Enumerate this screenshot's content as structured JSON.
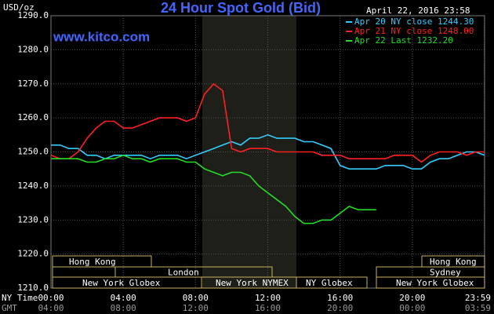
{
  "chart_data": {
    "type": "line",
    "title": "24 Hour Spot Gold (Bid)",
    "subtitle": "April 22, 2016 23:58",
    "y_label": "USD/oz",
    "watermark": "www.kitco.com",
    "x_label": "NY Time",
    "x2_label": "GMT",
    "x": [
      0,
      0.5,
      1,
      1.5,
      2,
      2.5,
      3,
      3.5,
      4,
      4.5,
      5,
      5.5,
      6,
      6.5,
      7,
      7.5,
      8,
      8.5,
      9,
      9.5,
      10,
      10.5,
      11,
      11.5,
      12,
      12.5,
      13,
      13.5,
      14,
      14.5,
      15,
      15.5,
      16,
      16.5,
      17,
      17.5,
      18,
      18.5,
      19,
      19.5,
      20,
      20.5,
      21,
      21.5,
      22,
      22.5,
      23,
      23.5,
      24
    ],
    "series": [
      {
        "name": "Apr 20 NY close 1244.30",
        "color": "#33ccff",
        "values": [
          1252,
          1252,
          1251,
          1251,
          1249,
          1249,
          1248,
          1249,
          1249,
          1249,
          1249,
          1248,
          1249,
          1249,
          1249,
          1248,
          1249,
          1250,
          1251,
          1252,
          1253,
          1252,
          1254,
          1254,
          1255,
          1254,
          1254,
          1254,
          1253,
          1253,
          1252,
          1251,
          1246,
          1245,
          1245,
          1245,
          1245,
          1246,
          1246,
          1246,
          1245,
          1245,
          1247,
          1248,
          1248,
          1249,
          1250,
          1250,
          1249
        ]
      },
      {
        "name": "Apr 21 NY close 1248.00",
        "color": "#ff2020",
        "values": [
          1249,
          1248,
          1248,
          1250,
          1254,
          1257,
          1259,
          1259,
          1257,
          1257,
          1258,
          1259,
          1260,
          1260,
          1260,
          1259,
          1260,
          1267,
          1270,
          1268,
          1251,
          1250,
          1251,
          1251,
          1251,
          1250,
          1250,
          1250,
          1250,
          1250,
          1249,
          1249,
          1249,
          1248,
          1248,
          1248,
          1248,
          1248,
          1249,
          1249,
          1249,
          1247,
          1249,
          1250,
          1250,
          1250,
          1249,
          1250,
          1250
        ]
      },
      {
        "name": "Apr 22 Last 1232.20",
        "color": "#22dd22",
        "values": [
          1248,
          1248,
          1248,
          1248,
          1247,
          1247,
          1248,
          1248,
          1249,
          1248,
          1248,
          1247,
          1248,
          1248,
          1248,
          1247,
          1247,
          1245,
          1244,
          1243,
          1244,
          1244,
          1243,
          1240,
          1238,
          1236,
          1234,
          1231,
          1229,
          1229,
          1230,
          1230,
          1232,
          1234,
          1233,
          1233,
          1233,
          null,
          null,
          null,
          null,
          null,
          null,
          null,
          null,
          null,
          null,
          null,
          null
        ]
      }
    ],
    "xlim": [
      0,
      24
    ],
    "xticks": [
      {
        "value": 0,
        "label": "00:00"
      },
      {
        "value": 4,
        "label": "04:00"
      },
      {
        "value": 8,
        "label": "08:00"
      },
      {
        "value": 12,
        "label": "12:00"
      },
      {
        "value": 16,
        "label": "16:00"
      },
      {
        "value": 20,
        "label": "20:00"
      },
      {
        "value": 23.983,
        "label": "23:59"
      }
    ],
    "x2ticks": [
      {
        "value": 0,
        "label": "04:00"
      },
      {
        "value": 4,
        "label": "08:00"
      },
      {
        "value": 8,
        "label": "12:00"
      },
      {
        "value": 12,
        "label": "16:00"
      },
      {
        "value": 16,
        "label": "20:00"
      },
      {
        "value": 20,
        "label": "00:00"
      },
      {
        "value": 23.983,
        "label": "03:59"
      }
    ],
    "ylim": [
      1210,
      1290
    ],
    "yticks": [
      {
        "value": 1210,
        "label": "1210.0"
      },
      {
        "value": 1220,
        "label": "1220.0"
      },
      {
        "value": 1230,
        "label": "1230.0"
      },
      {
        "value": 1240,
        "label": "1240.0"
      },
      {
        "value": 1250,
        "label": "1250.0"
      },
      {
        "value": 1260,
        "label": "1260.0"
      },
      {
        "value": 1270,
        "label": "1270.0"
      },
      {
        "value": 1280,
        "label": "1280.0"
      },
      {
        "value": 1290,
        "label": "1290.0"
      }
    ],
    "grid": true,
    "sessions": [
      "Hong Kong",
      "London",
      "New York Globex",
      "New York NYMEX",
      "NY Globex",
      "Hong Kong",
      "Sydney",
      "New York Globex"
    ]
  }
}
